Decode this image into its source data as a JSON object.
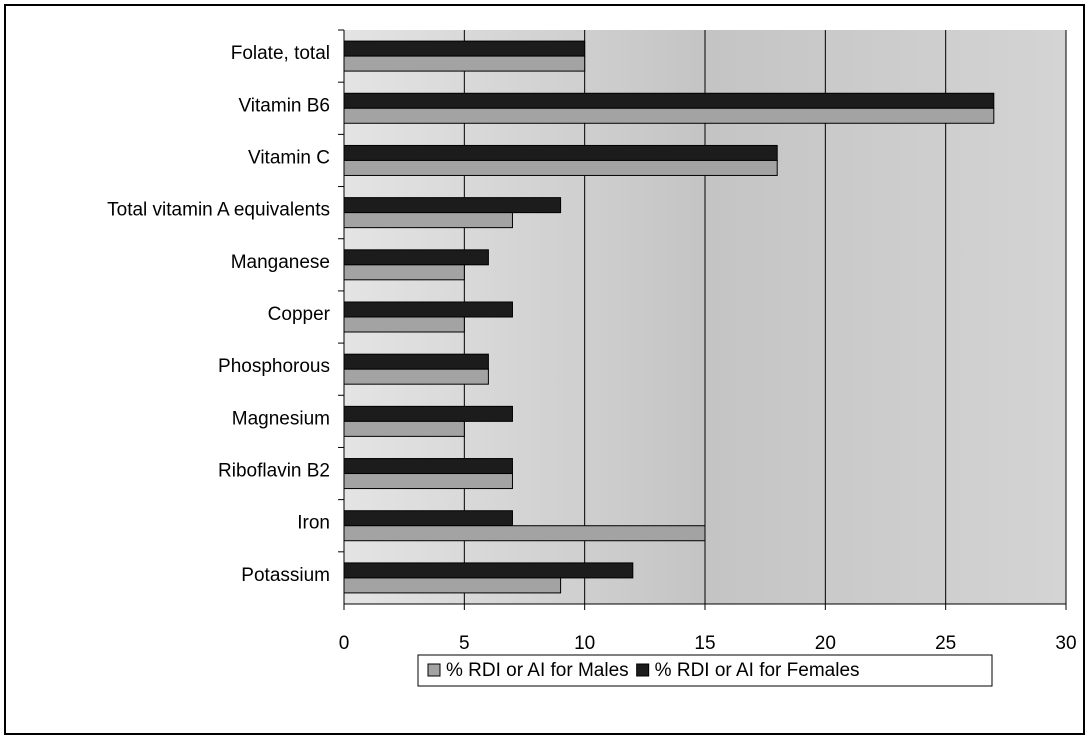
{
  "chart_data": {
    "type": "bar",
    "orientation": "horizontal",
    "categories": [
      "Folate, total",
      "Vitamin B6",
      "Vitamin C",
      "Total vitamin A equivalents",
      "Manganese",
      "Copper",
      "Phosphorous",
      "Magnesium",
      "Riboflavin B2",
      "Iron",
      "Potassium"
    ],
    "series": [
      {
        "name": "% RDI or AI for Males",
        "color": "#a3a3a3",
        "values": [
          10,
          27,
          18,
          7,
          5,
          5,
          6,
          5,
          7,
          15,
          9
        ]
      },
      {
        "name": "% RDI or AI for Females",
        "color": "#1c1c1c",
        "values": [
          10,
          27,
          18,
          9,
          6,
          7,
          6,
          7,
          7,
          7,
          12
        ]
      }
    ],
    "xlim": [
      0,
      30
    ],
    "xticks": [
      0,
      5,
      10,
      15,
      20,
      25,
      30
    ],
    "grid": true,
    "legend": "bottom"
  }
}
